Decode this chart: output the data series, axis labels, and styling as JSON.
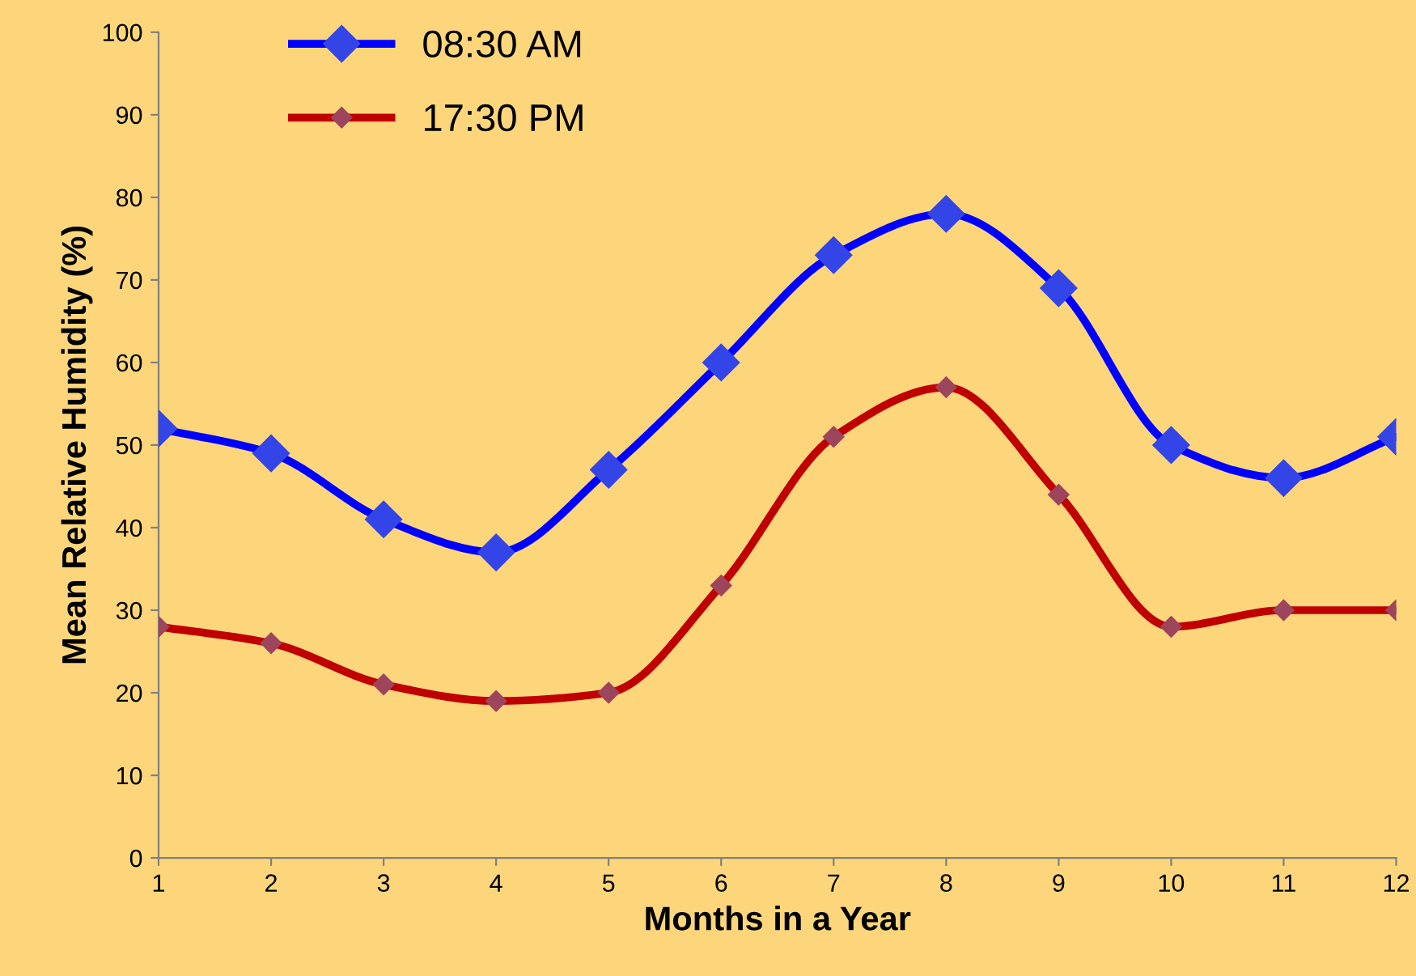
{
  "chart_data": {
    "type": "line",
    "xlabel": "Months in a Year",
    "ylabel": "Mean Relative Humidity (%)",
    "x": [
      1,
      2,
      3,
      4,
      5,
      6,
      7,
      8,
      9,
      10,
      11,
      12
    ],
    "series": [
      {
        "name": "08:30 AM",
        "color": "#0000ff",
        "values": [
          52,
          49,
          41,
          37,
          47,
          60,
          73,
          78,
          69,
          50,
          46,
          51
        ]
      },
      {
        "name": "17:30 PM",
        "color": "#c00000",
        "values": [
          28,
          26,
          21,
          19,
          20,
          33,
          51,
          57,
          44,
          28,
          30,
          30
        ]
      }
    ],
    "xlim": [
      1,
      12
    ],
    "xticks": [
      1,
      2,
      3,
      4,
      5,
      6,
      7,
      8,
      9,
      10,
      11,
      12
    ],
    "ylim": [
      0,
      100
    ],
    "yticks": [
      0,
      10,
      20,
      30,
      40,
      50,
      60,
      70,
      80,
      90,
      100
    ],
    "grid": false,
    "legend": "top left",
    "marker": "diamond",
    "line_style": "solid"
  }
}
